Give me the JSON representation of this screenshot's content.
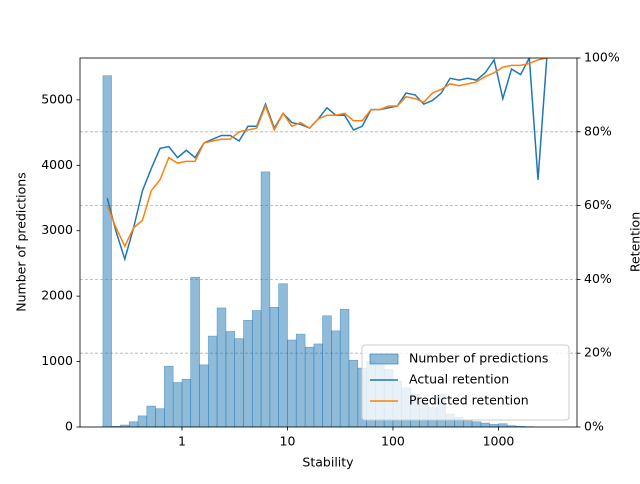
{
  "chart_data": {
    "type": "histogram-lines",
    "x_label": "Stability",
    "y_label": "Number of predictions",
    "y2_label": "Retention",
    "xscale": "log",
    "xlim": [
      0.108,
      5550
    ],
    "xticks": [
      1,
      10,
      100,
      1000
    ],
    "ylim": [
      0,
      5640
    ],
    "yticks": [
      0,
      1000,
      2000,
      3000,
      4000,
      5000
    ],
    "y2lim": [
      0,
      100
    ],
    "y2ticks": [
      {
        "value": 0,
        "label": "0%"
      },
      {
        "value": 20,
        "label": "20%"
      },
      {
        "value": 40,
        "label": "40%"
      },
      {
        "value": 60,
        "label": "60%"
      },
      {
        "value": 80,
        "label": "80%"
      },
      {
        "value": 100,
        "label": "100%"
      }
    ],
    "grid": "y2",
    "legend": "lower right",
    "histogram": {
      "name": "Number of predictions",
      "color": "#1f77b4",
      "bins": [
        0.178,
        0.215,
        0.261,
        0.316,
        0.383,
        0.464,
        0.562,
        0.681,
        0.825,
        1,
        1.21,
        1.47,
        1.78,
        2.15,
        2.61,
        3.16,
        3.83,
        4.64,
        5.62,
        6.81,
        8.25,
        10,
        12.1,
        14.7,
        17.8,
        21.5,
        26.1,
        31.6,
        38.3,
        46.4,
        56.2,
        68.1,
        82.5,
        100,
        121,
        147,
        178,
        215,
        261,
        316,
        383,
        464,
        562,
        681,
        825,
        1000,
        1210,
        1470,
        1780,
        2150,
        2610
      ],
      "values": [
        5370,
        10,
        30,
        80,
        170,
        320,
        280,
        930,
        680,
        730,
        2290,
        950,
        1390,
        1820,
        1460,
        1350,
        1630,
        1780,
        3900,
        1830,
        2190,
        1330,
        1420,
        1220,
        1270,
        1700,
        1470,
        1800,
        1020,
        900,
        1000,
        950,
        880,
        700,
        600,
        500,
        400,
        300,
        500,
        200,
        150,
        110,
        80,
        60,
        40,
        50,
        20,
        10,
        5,
        0
      ]
    },
    "x": [
      0.196,
      0.237,
      0.287,
      0.348,
      0.422,
      0.511,
      0.619,
      0.75,
      0.909,
      1.1,
      1.33,
      1.62,
      1.96,
      2.37,
      2.87,
      3.48,
      4.22,
      5.11,
      6.19,
      7.5,
      9.09,
      11,
      13.3,
      16.2,
      19.6,
      23.7,
      28.7,
      34.8,
      42.2,
      51.1,
      61.9,
      75,
      90.9,
      110,
      133,
      162,
      196,
      237,
      287,
      348,
      422,
      511,
      619,
      750,
      909,
      1100,
      1330,
      1620,
      1960,
      2370,
      2870
    ],
    "series": [
      {
        "name": "Actual retention",
        "color": "#1f77b4",
        "axis": "y2",
        "values": [
          62,
          53,
          45.5,
          54,
          64,
          70,
          75.5,
          76,
          73,
          75,
          73,
          77,
          78,
          79,
          79,
          77.5,
          81.5,
          81.5,
          87.5,
          81,
          85,
          82.5,
          82,
          81,
          83.5,
          86.5,
          84.5,
          84.5,
          80.5,
          81.5,
          86,
          86,
          86.5,
          87,
          90.5,
          90,
          87.5,
          88.5,
          90.5,
          94.5,
          94,
          94.5,
          94,
          96,
          99.5,
          89,
          97,
          95.5,
          100,
          67,
          100
        ]
      },
      {
        "name": "Predicted retention",
        "color": "#ff7f0e",
        "axis": "y2",
        "values": [
          60,
          54,
          49,
          54,
          56,
          64,
          67,
          73,
          71.5,
          72,
          72,
          77,
          77.5,
          78,
          78,
          80,
          80.5,
          81,
          87,
          80.5,
          85,
          81.5,
          82.5,
          81,
          83.5,
          84.5,
          84.5,
          85,
          83,
          83,
          86,
          86,
          87,
          87,
          89.5,
          89,
          88,
          90.5,
          91.5,
          93,
          92.5,
          93,
          93.5,
          95,
          96,
          97.5,
          98,
          98,
          98.5,
          99.5,
          100
        ]
      }
    ]
  }
}
